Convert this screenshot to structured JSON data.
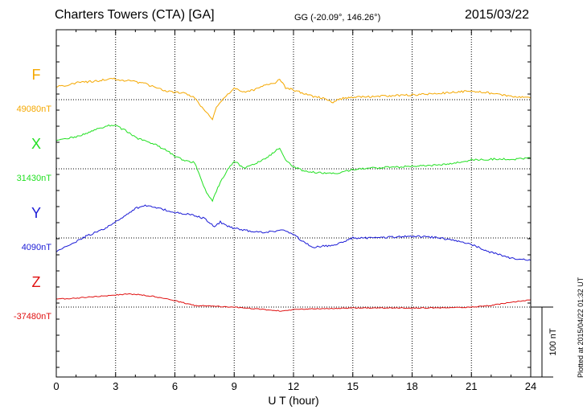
{
  "header": {
    "station": "Charters Towers (CTA)  [GA]",
    "coords": "GG (-20.09°, 146.26°)",
    "date": "2015/03/22"
  },
  "footer": {
    "plotted": "Plotted at 2015/04/22 01:32 UT"
  },
  "chart_data": {
    "type": "line",
    "xlabel": "U T (hour)",
    "xlim": [
      0,
      24
    ],
    "x_ticks": [
      "0",
      "3",
      "6",
      "9",
      "12",
      "15",
      "18",
      "21",
      "24"
    ],
    "scale_bar": {
      "label": "100 nT",
      "nT": 100
    },
    "grid": true,
    "series": [
      {
        "name": "F",
        "baseline_label": "49080nT",
        "color": "#f5a800",
        "x": [
          0,
          0.5,
          1,
          1.5,
          2,
          2.5,
          2.8,
          3,
          3.3,
          3.7,
          4,
          4.5,
          5,
          5.5,
          6,
          6.5,
          7,
          7.3,
          7.6,
          7.9,
          8.1,
          8.3,
          8.6,
          9,
          9.5,
          10,
          10.5,
          11,
          11.3,
          11.6,
          12,
          12.5,
          13,
          13.5,
          14,
          14.5,
          15,
          16,
          17,
          18,
          19,
          20,
          21,
          22,
          23,
          24
        ],
        "values": [
          17,
          18,
          21,
          22,
          23,
          25,
          27,
          25,
          24,
          24,
          22,
          20,
          15,
          11,
          9,
          8,
          2,
          -8,
          -15,
          -25,
          -10,
          -2,
          5,
          14,
          10,
          12,
          18,
          20,
          25,
          15,
          12,
          8,
          4,
          2,
          -3,
          2,
          3,
          4,
          5,
          6,
          7,
          9,
          11,
          8,
          4,
          2
        ]
      },
      {
        "name": "X",
        "baseline_label": "31430nT",
        "color": "#22e022",
        "x": [
          0,
          0.5,
          1,
          1.5,
          2,
          2.5,
          2.8,
          3,
          3.3,
          3.7,
          4,
          4.5,
          5,
          5.5,
          6,
          6.5,
          7,
          7.3,
          7.6,
          7.9,
          8.1,
          8.3,
          8.6,
          9,
          9.5,
          10,
          10.5,
          11,
          11.3,
          11.6,
          12,
          12.5,
          13,
          13.5,
          14,
          14.5,
          15,
          16,
          17,
          18,
          19,
          20,
          21,
          22,
          23,
          24
        ],
        "values": [
          35,
          37,
          40,
          44,
          49,
          52,
          55,
          54,
          50,
          45,
          39,
          34,
          30,
          24,
          16,
          10,
          8,
          -12,
          -30,
          -40,
          -28,
          -16,
          -4,
          10,
          0,
          6,
          12,
          20,
          26,
          12,
          2,
          -2,
          -4,
          -5,
          -6,
          -4,
          -1,
          1,
          2,
          3,
          4,
          6,
          11,
          12,
          12,
          13
        ]
      },
      {
        "name": "Y",
        "baseline_label": "4090nT",
        "color": "#1a1ad6",
        "x": [
          0,
          0.5,
          1,
          1.5,
          2,
          2.5,
          3,
          3.5,
          4,
          4.5,
          5,
          5.5,
          6,
          6.5,
          7,
          7.5,
          8,
          8.3,
          8.6,
          9,
          9.5,
          10,
          10.5,
          11,
          11.5,
          12,
          12.5,
          13,
          13.5,
          14,
          14.5,
          15,
          16,
          17,
          18,
          19,
          20,
          21,
          22,
          23,
          24
        ],
        "values": [
          -17,
          -10,
          -5,
          2,
          7,
          12,
          20,
          28,
          37,
          40,
          38,
          35,
          32,
          30,
          28,
          24,
          14,
          20,
          15,
          12,
          10,
          7,
          7,
          8,
          10,
          5,
          -5,
          -12,
          -10,
          -10,
          -5,
          0,
          0,
          1,
          2,
          1,
          -2,
          -8,
          -18,
          -25,
          -28
        ]
      },
      {
        "name": "Z",
        "baseline_label": "-37480nT",
        "color": "#e01010",
        "x": [
          0,
          1,
          2,
          3,
          3.5,
          4,
          5,
          6,
          6.5,
          7,
          8,
          9,
          10,
          11,
          11.5,
          12,
          13,
          14,
          15,
          16,
          17,
          18,
          19,
          20,
          21,
          22,
          23,
          24
        ],
        "values": [
          10,
          11,
          13,
          15,
          16,
          16,
          13,
          8,
          5,
          2,
          1,
          0,
          -2,
          -4,
          -5,
          -3,
          -2,
          -2,
          -1,
          -1,
          -1,
          -1,
          -1,
          -1,
          0,
          2,
          6,
          9
        ]
      }
    ]
  }
}
